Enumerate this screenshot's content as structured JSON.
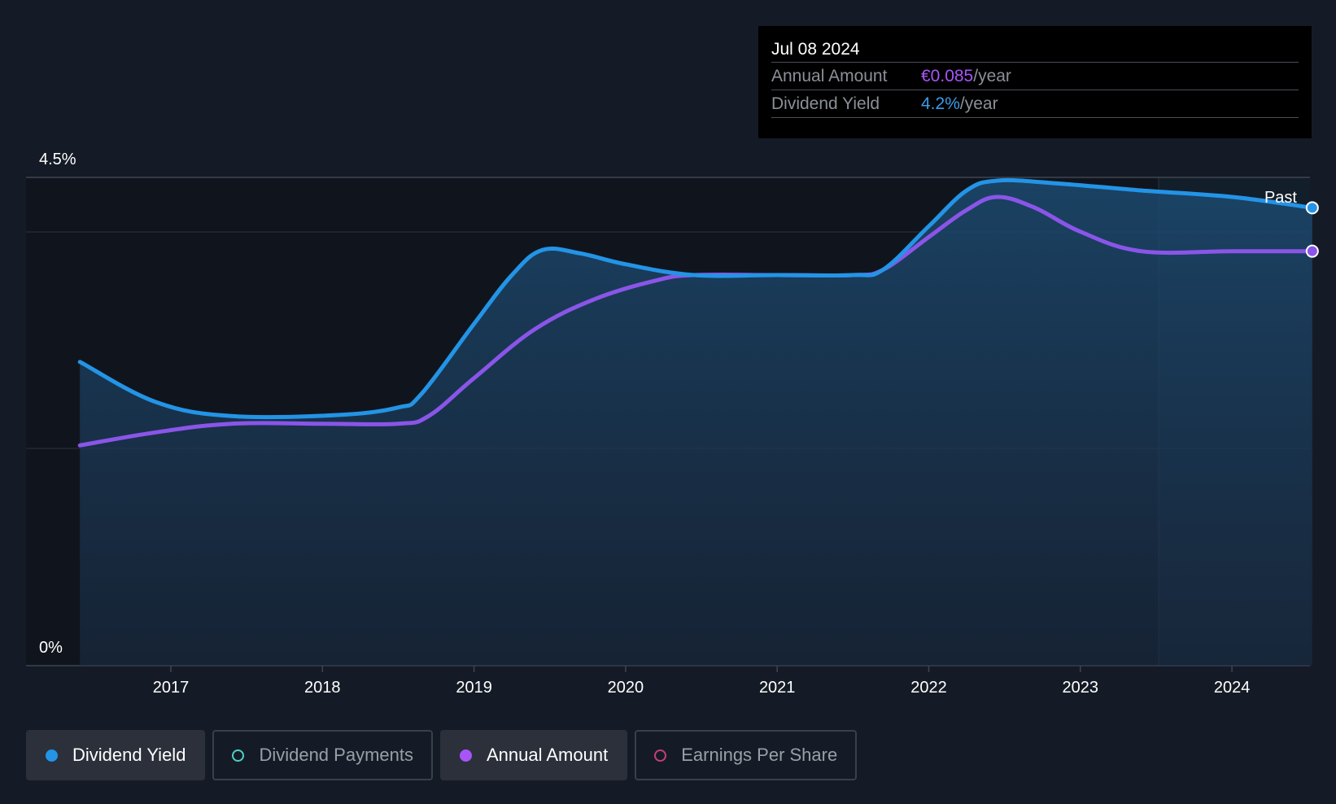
{
  "chart_data": {
    "type": "line",
    "x_ticks": [
      "2017",
      "2018",
      "2019",
      "2020",
      "2021",
      "2022",
      "2023",
      "2024"
    ],
    "y_ticks": [
      "0%",
      "4.5%"
    ],
    "ylim": [
      0,
      4.5
    ],
    "past_label": "Past",
    "grid": true,
    "series": [
      {
        "name": "Dividend Yield",
        "color": "#2394e6",
        "filled": true,
        "points": [
          [
            2016.4,
            2.8
          ],
          [
            2016.9,
            2.43
          ],
          [
            2017.4,
            2.3
          ],
          [
            2018.1,
            2.31
          ],
          [
            2018.5,
            2.38
          ],
          [
            2018.65,
            2.5
          ],
          [
            2019.0,
            3.15
          ],
          [
            2019.25,
            3.6
          ],
          [
            2019.45,
            3.83
          ],
          [
            2019.7,
            3.8
          ],
          [
            2020.0,
            3.7
          ],
          [
            2020.45,
            3.6
          ],
          [
            2021.0,
            3.6
          ],
          [
            2021.5,
            3.6
          ],
          [
            2021.7,
            3.65
          ],
          [
            2022.0,
            4.05
          ],
          [
            2022.25,
            4.38
          ],
          [
            2022.45,
            4.47
          ],
          [
            2022.8,
            4.45
          ],
          [
            2023.4,
            4.38
          ],
          [
            2024.0,
            4.32
          ],
          [
            2024.53,
            4.22
          ]
        ]
      },
      {
        "name": "Annual Amount",
        "color": "#8a55e8",
        "filled": false,
        "points": [
          [
            2016.4,
            2.03
          ],
          [
            2016.9,
            2.15
          ],
          [
            2017.4,
            2.23
          ],
          [
            2018.0,
            2.23
          ],
          [
            2018.5,
            2.23
          ],
          [
            2018.7,
            2.3
          ],
          [
            2019.0,
            2.65
          ],
          [
            2019.4,
            3.1
          ],
          [
            2019.8,
            3.38
          ],
          [
            2020.2,
            3.55
          ],
          [
            2020.45,
            3.6
          ],
          [
            2021.0,
            3.6
          ],
          [
            2021.5,
            3.6
          ],
          [
            2021.7,
            3.65
          ],
          [
            2022.0,
            3.95
          ],
          [
            2022.25,
            4.2
          ],
          [
            2022.45,
            4.32
          ],
          [
            2022.7,
            4.22
          ],
          [
            2023.0,
            4.0
          ],
          [
            2023.4,
            3.82
          ],
          [
            2024.0,
            3.82
          ],
          [
            2024.53,
            3.82
          ]
        ]
      }
    ]
  },
  "tooltip": {
    "date": "Jul 08 2024",
    "rows": [
      {
        "label": "Annual Amount",
        "value": "€0.085",
        "unit": "/year",
        "color": "#a855f7"
      },
      {
        "label": "Dividend Yield",
        "value": "4.2%",
        "unit": "/year",
        "color": "#3b9be8"
      }
    ]
  },
  "legend": [
    {
      "label": "Dividend Yield",
      "color": "#2394e6",
      "active": true
    },
    {
      "label": "Dividend Payments",
      "color": "#4fd1c5",
      "active": false
    },
    {
      "label": "Annual Amount",
      "color": "#a855f7",
      "active": true
    },
    {
      "label": "Earnings Per Share",
      "color": "#c2407a",
      "active": false
    }
  ]
}
